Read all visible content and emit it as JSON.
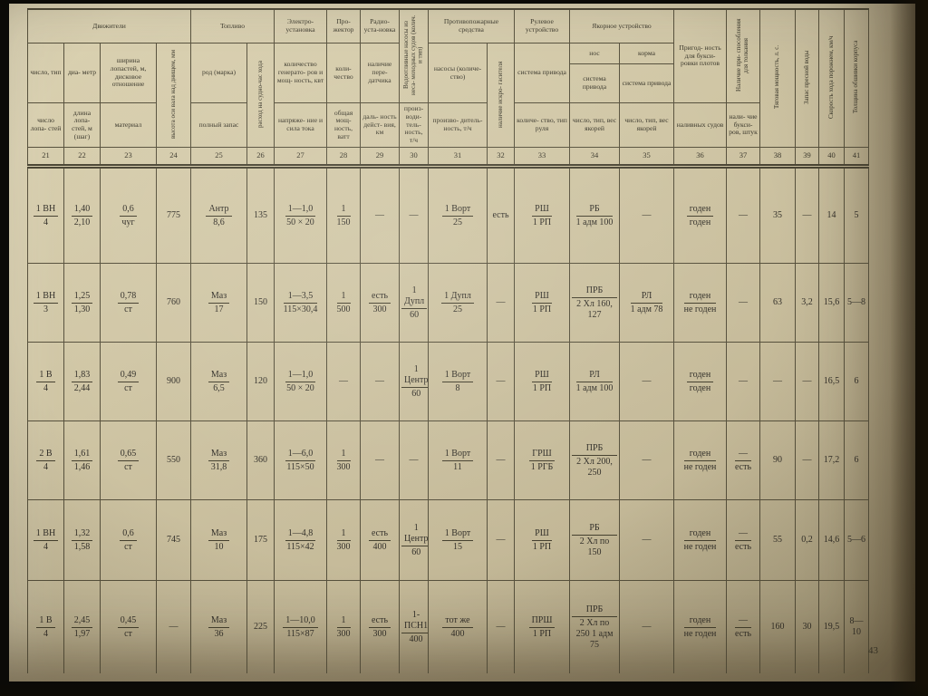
{
  "page": {
    "number": "43"
  },
  "colors": {
    "paper": "#cfc5a4",
    "line": "#57513d",
    "ink": "#33302a",
    "edge": "#0b0a07"
  },
  "table": {
    "groups": {
      "dvizhiteli": "Движители",
      "toplivo": "Топливо",
      "elektro": "Электро-установка",
      "prozhektor": "Про-жектор",
      "radio": "Радио-уста-новка",
      "protivo": "Противопожарные средства",
      "rulevoe": "Рулевое устройство",
      "yakornoe": "Якорное устройство",
      "nos": "нос",
      "korma": "корма"
    },
    "header": {
      "c21_top": "число, тип",
      "c21_bot": "число лопа- стей",
      "c22_top": "диа- метр",
      "c22_bot": "длина лопа- стей, м (шаг)",
      "c23_top": "ширина лопастей, м, дисковое отношение",
      "c23_bot": "материал",
      "c24_vert": "высота оси вала над днищем, мм",
      "c25_top": "род (марка)",
      "c25_bot": "полный запас",
      "c26_vert": "расход на судно-час хода",
      "c27_top": "количество генерато- ров и мощ- ность, квт",
      "c27_bot": "напряже- ние и сила тока",
      "c28_top": "коли- чество",
      "c28_bot": "общая мощ- ность, ватт",
      "c29_top": "наличие пере- датчика",
      "c29_bot": "даль- ность дейст- вия, км",
      "c30_vert": "Водоотливные насосы из неса- моходных судов (колич. и тип)",
      "c30_bot": "произ- води- тель- ность, т/ч",
      "c31_top": "насосы (количе- ство)",
      "c31_bot": "произво- дитель- ность, т/ч",
      "c32_vert": "наличие искро- гасителя",
      "c33_top": "система привода",
      "c33_bot": "количе- ство, тип руля",
      "c34_top": "система привода",
      "c34_bot": "число, тип, вес якорей",
      "c35_top": "система привода",
      "c35_bot": "число, тип, вес якорей",
      "c36_top": "Пригод- ность для букси- ровки плотов",
      "c36_bot": "наливных судов",
      "c37_vert": "Наличие при- способления для толкания",
      "c37_bot": "нали- чие букси- ров, штук",
      "c38_vert": "Тяговая мощность, л. с.",
      "c39_vert": "Запас пресной воды",
      "c40_vert": "Скорость хода порожнем, км/ч",
      "c41_vert": "Толщина обшивки корпуса"
    },
    "numbers": [
      "21",
      "22",
      "23",
      "24",
      "25",
      "26",
      "27",
      "28",
      "29",
      "30",
      "31",
      "32",
      "33",
      "34",
      "35",
      "36",
      "37",
      "38",
      "39",
      "40",
      "41"
    ],
    "rows": [
      [
        [
          "1 ВН",
          "4"
        ],
        [
          "1,40",
          "2,10"
        ],
        [
          "0,6",
          "чуг"
        ],
        "775",
        [
          "Антр",
          "8,6"
        ],
        "135",
        [
          "1—1,0",
          "50 × 20"
        ],
        [
          "1",
          "150"
        ],
        "—",
        "—",
        [
          "1 Ворт",
          "25"
        ],
        "есть",
        [
          "РШ",
          "1 РП"
        ],
        [
          "РБ",
          "1 адм 100"
        ],
        "—",
        [
          "годен",
          "годен"
        ],
        "—",
        "35",
        "—",
        "14",
        "5"
      ],
      [
        [
          "1 ВН",
          "3"
        ],
        [
          "1,25",
          "1,30"
        ],
        [
          "0,78",
          "ст"
        ],
        "760",
        [
          "Маз",
          "17"
        ],
        "150",
        [
          "1—3,5",
          "115×30,4"
        ],
        [
          "1",
          "500"
        ],
        [
          "есть",
          "300"
        ],
        [
          "1 Дупл",
          "60"
        ],
        [
          "1 Дупл",
          "25"
        ],
        "—",
        [
          "РШ",
          "1 РП"
        ],
        [
          "ПРБ",
          "2 Хл 160, 127"
        ],
        [
          "РЛ",
          "1 адм 78"
        ],
        [
          "годен",
          "не годен"
        ],
        "—",
        "63",
        "3,2",
        "15,6",
        "5—8"
      ],
      [
        [
          "1 В",
          "4"
        ],
        [
          "1,83",
          "2,44"
        ],
        [
          "0,49",
          "ст"
        ],
        "900",
        [
          "Маз",
          "6,5"
        ],
        "120",
        [
          "1—1,0",
          "50 × 20"
        ],
        "—",
        "—",
        [
          "1 Центр",
          "60"
        ],
        [
          "1 Ворт",
          "8"
        ],
        "—",
        [
          "РШ",
          "1 РП"
        ],
        [
          "РЛ",
          "1 адм 100"
        ],
        "—",
        [
          "годен",
          "годен"
        ],
        "—",
        "—",
        "—",
        "16,5",
        "6"
      ],
      [
        [
          "2 В",
          "4"
        ],
        [
          "1,61",
          "1,46"
        ],
        [
          "0,65",
          "ст"
        ],
        "550",
        [
          "Маз",
          "31,8"
        ],
        "360",
        [
          "1—6,0",
          "115×50"
        ],
        [
          "1",
          "300"
        ],
        "—",
        "—",
        [
          "1 Ворт",
          "11"
        ],
        "—",
        [
          "ГРШ",
          "1 РГБ"
        ],
        [
          "ПРБ",
          "2 Хл 200, 250"
        ],
        "—",
        [
          "годен",
          "не годен"
        ],
        [
          "—",
          "есть"
        ],
        "90",
        "—",
        "17,2",
        "6"
      ],
      [
        [
          "1 ВН",
          "4"
        ],
        [
          "1,32",
          "1,58"
        ],
        [
          "0,6",
          "ст"
        ],
        "745",
        [
          "Маз",
          "10"
        ],
        "175",
        [
          "1—4,8",
          "115×42"
        ],
        [
          "1",
          "300"
        ],
        [
          "есть",
          "400"
        ],
        [
          "1 Центр",
          "60"
        ],
        [
          "1 Ворт",
          "15"
        ],
        "—",
        [
          "РШ",
          "1 РП"
        ],
        [
          "РБ",
          "2 Хл по 150"
        ],
        "—",
        [
          "годен",
          "не годен"
        ],
        [
          "—",
          "есть"
        ],
        "55",
        "0,2",
        "14,6",
        "5—6"
      ],
      [
        [
          "1 В",
          "4"
        ],
        [
          "2,45",
          "1,97"
        ],
        [
          "0,45",
          "ст"
        ],
        "—",
        [
          "Маз",
          "36"
        ],
        "225",
        [
          "1—10,0",
          "115×87"
        ],
        [
          "1",
          "300"
        ],
        [
          "есть",
          "300"
        ],
        [
          "1-ПСН1",
          "400"
        ],
        [
          "тот же",
          "400"
        ],
        "—",
        [
          "ПРШ",
          "1 РП"
        ],
        [
          "ПРБ",
          "2 Хл по 250 1 адм 75"
        ],
        "—",
        [
          "годен",
          "не годен"
        ],
        [
          "—",
          "есть"
        ],
        "160",
        "30",
        "19,5",
        "8—10"
      ]
    ]
  }
}
